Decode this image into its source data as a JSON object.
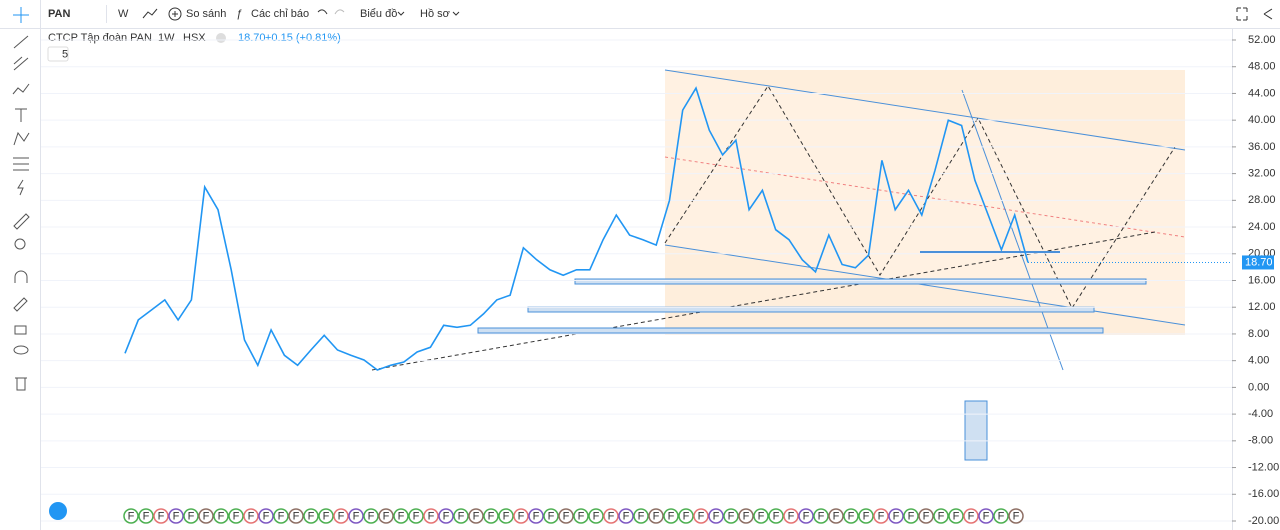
{
  "toolbar": {
    "symbol": "PAN",
    "interval": "W",
    "compare": "So sánh",
    "indicators": "Các chỉ báo",
    "chart_menu": "Biểu đồ",
    "profile": "Hồ sơ"
  },
  "legend": {
    "name": "CTCP Tập đoàn PAN",
    "interval": "1W",
    "exchange": "HSX",
    "last": "18.70",
    "change": "+0.15 (+0.81%)",
    "collapse_count": "5"
  },
  "event_marker": "F",
  "chart_data": {
    "type": "line",
    "color": "#2196f3",
    "values": [
      5.1,
      10.1,
      11.6,
      13.1,
      10.1,
      13.1,
      30.0,
      26.6,
      17.6,
      7.1,
      3.3,
      8.6,
      4.8,
      3.3,
      5.6,
      7.8,
      5.6,
      4.8,
      4.1,
      2.6,
      3.3,
      3.8,
      5.3,
      6.0,
      9.3,
      9.0,
      9.3,
      11.0,
      13.1,
      13.8,
      20.9,
      19.1,
      17.6,
      16.8,
      17.6,
      17.6,
      22.1,
      25.8,
      22.8,
      22.1,
      21.3,
      28.0,
      41.5,
      44.8,
      38.5,
      34.8,
      37.0,
      26.6,
      29.5,
      23.6,
      22.1,
      19.1,
      17.3,
      22.8,
      18.4,
      17.9,
      19.8,
      34.0,
      26.6,
      29.5,
      25.8,
      32.5,
      40.0,
      39.2,
      31.0,
      25.8,
      20.6,
      25.8,
      18.7
    ],
    "ylim": [
      -20,
      52
    ],
    "yticks": [
      {
        "value": 52,
        "label": "52.00"
      },
      {
        "value": 48,
        "label": "48.00"
      },
      {
        "value": 44,
        "label": "44.00"
      },
      {
        "value": 40,
        "label": "40.00"
      },
      {
        "value": 36,
        "label": "36.00"
      },
      {
        "value": 32,
        "label": "32.00"
      },
      {
        "value": 28,
        "label": "28.00"
      },
      {
        "value": 24,
        "label": "24.00"
      },
      {
        "value": 20,
        "label": "20.00"
      },
      {
        "value": 16,
        "label": "16.00"
      },
      {
        "value": 12,
        "label": "12.00"
      },
      {
        "value": 8,
        "label": "8.00"
      },
      {
        "value": 4,
        "label": "4.00"
      },
      {
        "value": 0,
        "label": "0.00"
      },
      {
        "value": -4,
        "label": "-4.00"
      },
      {
        "value": -8,
        "label": "-8.00"
      },
      {
        "value": -12,
        "label": "-12.00"
      },
      {
        "value": -16,
        "label": "-16.00"
      },
      {
        "value": -20,
        "label": "-20.00"
      }
    ],
    "last_value": {
      "value": 18.7,
      "label": "18.70"
    }
  }
}
